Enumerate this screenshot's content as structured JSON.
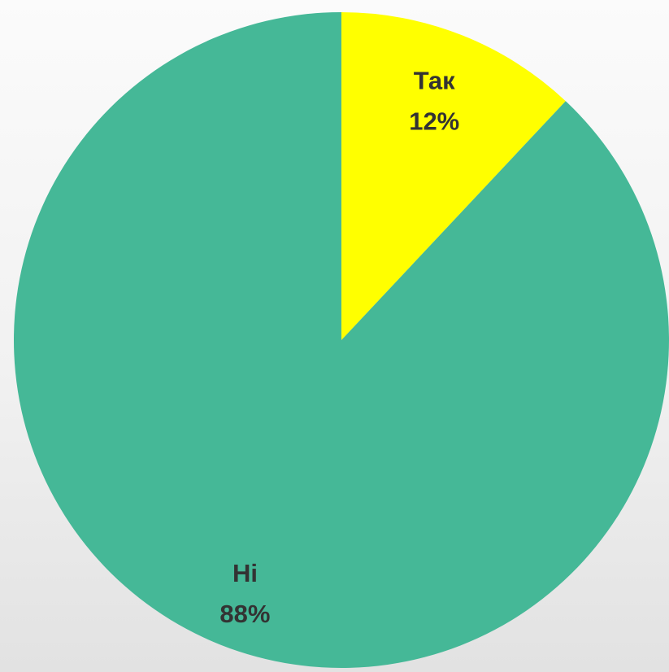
{
  "chart_data": {
    "type": "pie",
    "slices": [
      {
        "label": "Так",
        "value": 12,
        "display": "12%",
        "color": "#FFFF00"
      },
      {
        "label": "Ні",
        "value": 88,
        "display": "88%",
        "color": "#45B897"
      }
    ],
    "start_angle_deg": 0,
    "direction": "clockwise",
    "label_color": "#333333",
    "legend": "none"
  }
}
